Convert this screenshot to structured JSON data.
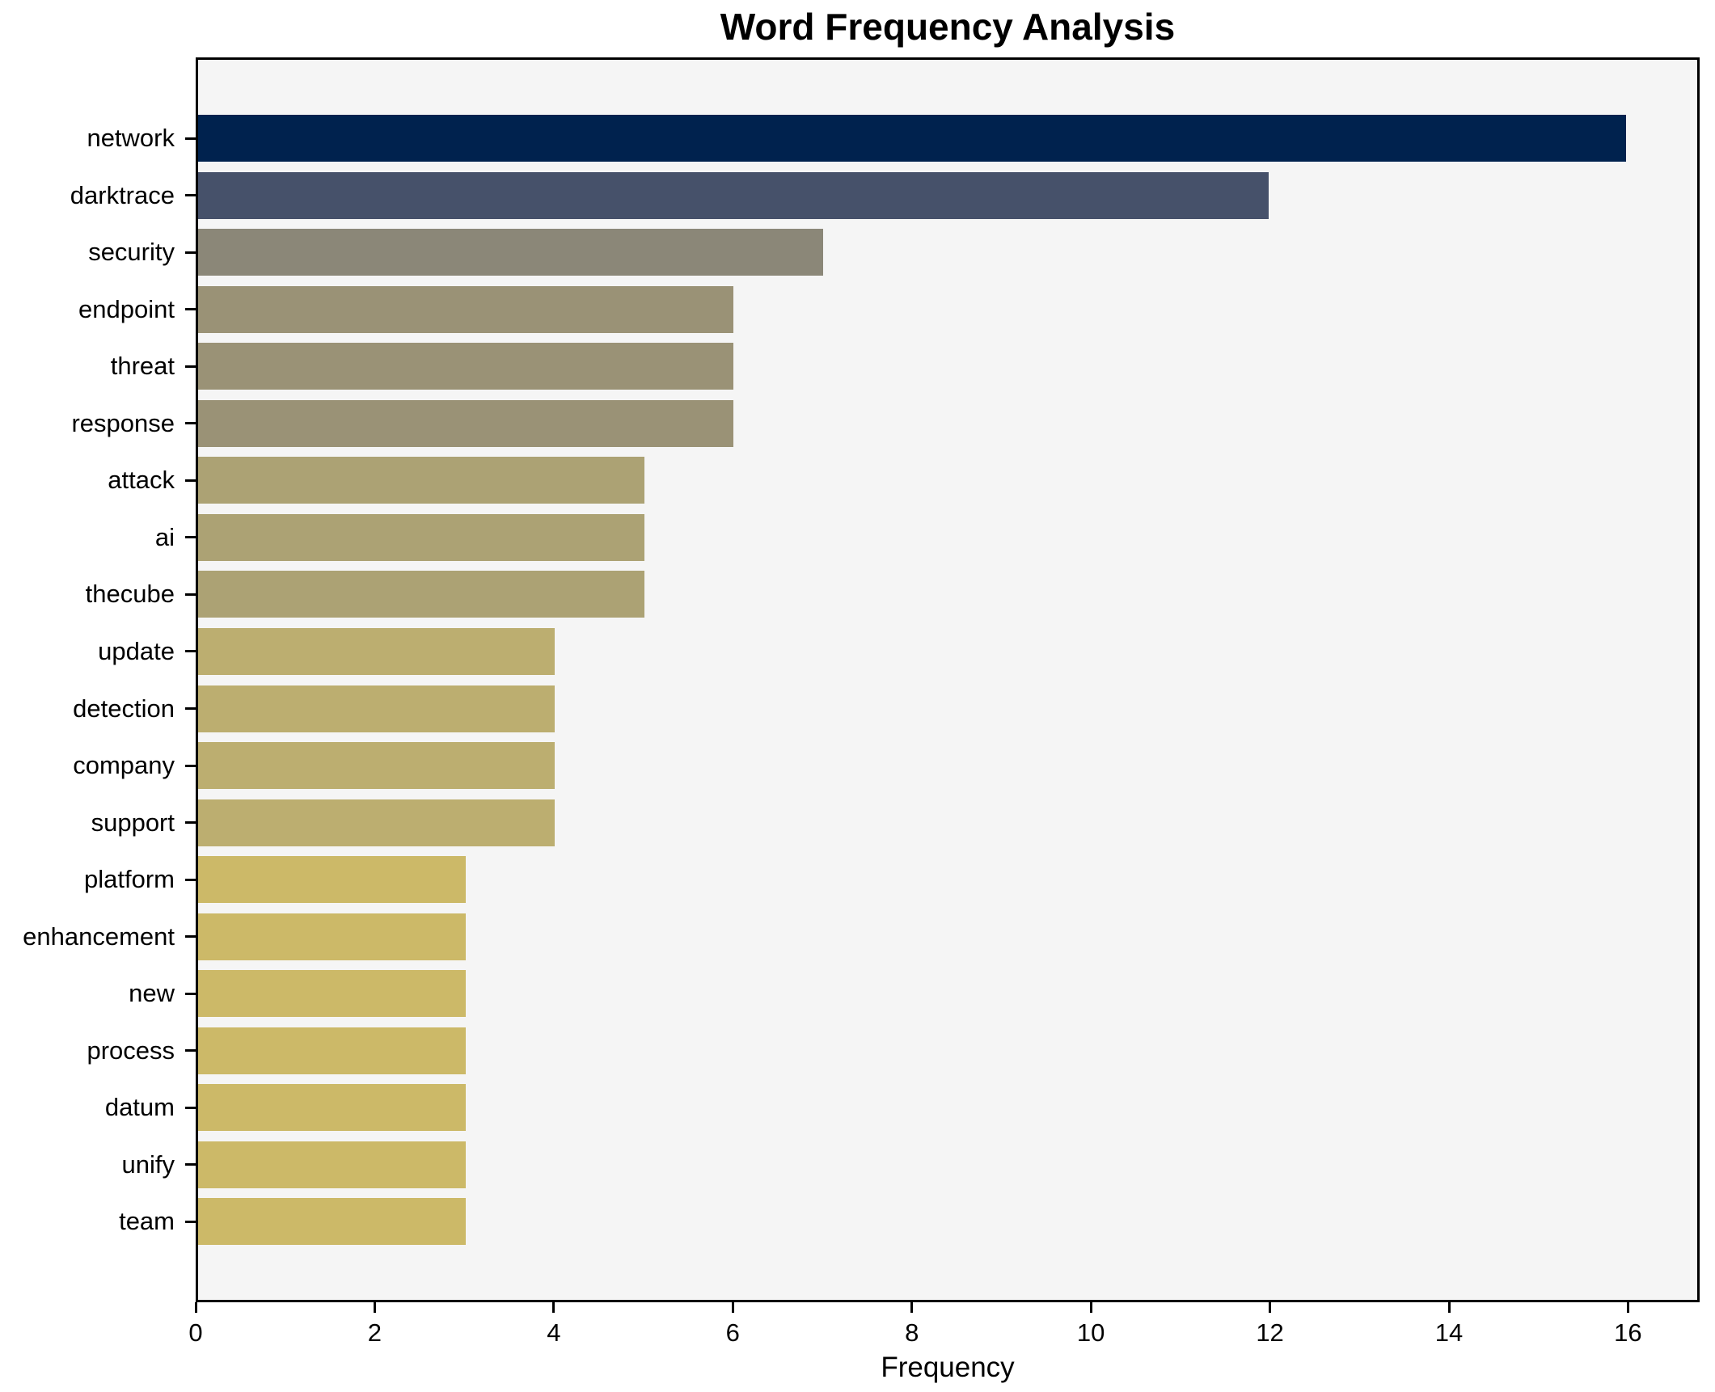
{
  "chart_data": {
    "type": "bar",
    "orientation": "horizontal",
    "title": "Word Frequency Analysis",
    "xlabel": "Frequency",
    "ylabel": "",
    "categories": [
      "network",
      "darktrace",
      "security",
      "endpoint",
      "threat",
      "response",
      "attack",
      "ai",
      "thecube",
      "update",
      "detection",
      "company",
      "support",
      "platform",
      "enhancement",
      "new",
      "process",
      "datum",
      "unify",
      "team"
    ],
    "values": [
      16,
      12,
      7,
      6,
      6,
      6,
      5,
      5,
      5,
      4,
      4,
      4,
      4,
      3,
      3,
      3,
      3,
      3,
      3,
      3
    ],
    "bar_colors": [
      "#00224e",
      "#46516a",
      "#8b8778",
      "#9a9276",
      "#9a9276",
      "#9a9276",
      "#aca274",
      "#aca274",
      "#aca274",
      "#bcae70",
      "#bcae70",
      "#bcae70",
      "#bcae70",
      "#ccb968",
      "#ccb968",
      "#ccb968",
      "#ccb968",
      "#ccb968",
      "#ccb968",
      "#ccb968"
    ],
    "xlim": [
      0,
      16.8
    ],
    "xticks": [
      0,
      2,
      4,
      6,
      8,
      10,
      12,
      14,
      16
    ],
    "grid": false,
    "legend": null,
    "value_labels_shown": false,
    "colormap_note": "cividis-like gradient, darkest = highest value",
    "axes_background": "#f5f5f5",
    "figure_background": "#ffffff",
    "spine_color": "#000000"
  }
}
